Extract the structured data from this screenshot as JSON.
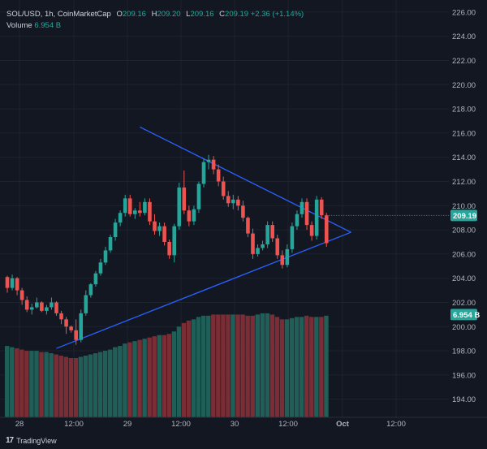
{
  "legend": {
    "symbol": "SOL/USD, 1h, CoinMarketCap",
    "o_label": "O",
    "o_value": "209.16",
    "h_label": "H",
    "h_value": "209.20",
    "l_label": "L",
    "l_value": "209.16",
    "c_label": "C",
    "c_value": "209.19",
    "change": "+2.36 (+1.14%)",
    "volume_label": "Volume",
    "volume_value": "6.954 B"
  },
  "branding": {
    "text": "TradingView",
    "mark": "17"
  },
  "colors": {
    "up": "#26a69a",
    "down": "#ef5350",
    "volume_up": "#1f5f58",
    "volume_down": "#7a2d35",
    "trendline": "#2962ff",
    "background": "#131722"
  },
  "chart_data": {
    "type": "candlestick",
    "y_ticks": [
      "194.00",
      "196.00",
      "198.00",
      "200.00",
      "202.00",
      "204.00",
      "206.00",
      "208.00",
      "210.00",
      "212.00",
      "214.00",
      "216.00",
      "218.00",
      "220.00",
      "222.00",
      "224.00",
      "226.00"
    ],
    "ylim": [
      192.5,
      227
    ],
    "x_ticks": [
      "28",
      "12:00",
      "29",
      "12:00",
      "30",
      "12:00",
      "Oct",
      "12:00"
    ],
    "price_label": "209.19",
    "volume_label": "6.954 B",
    "candles": [
      [
        204.1,
        204.2,
        202.8,
        203.2
      ],
      [
        203.2,
        204.3,
        203.0,
        204.0
      ],
      [
        204.0,
        204.1,
        202.6,
        203.0
      ],
      [
        203.0,
        203.2,
        201.8,
        202.2
      ],
      [
        202.2,
        202.5,
        201.2,
        201.4
      ],
      [
        201.4,
        201.9,
        201.0,
        201.6
      ],
      [
        201.6,
        202.4,
        201.5,
        202.0
      ],
      [
        202.0,
        202.1,
        201.2,
        201.3
      ],
      [
        201.3,
        201.8,
        201.0,
        201.6
      ],
      [
        201.6,
        202.4,
        201.4,
        202.0
      ],
      [
        202.0,
        202.1,
        200.9,
        201.1
      ],
      [
        201.1,
        201.3,
        200.2,
        200.6
      ],
      [
        200.6,
        200.8,
        199.4,
        200.0
      ],
      [
        200.0,
        200.1,
        199.5,
        199.7
      ],
      [
        199.7,
        200.6,
        198.5,
        198.9
      ],
      [
        198.9,
        201.4,
        198.7,
        201.1
      ],
      [
        201.1,
        203.0,
        200.9,
        202.6
      ],
      [
        202.6,
        203.6,
        202.4,
        203.5
      ],
      [
        203.5,
        204.6,
        203.3,
        204.4
      ],
      [
        204.4,
        205.6,
        204.2,
        205.3
      ],
      [
        205.3,
        206.6,
        205.1,
        206.3
      ],
      [
        206.3,
        207.6,
        206.1,
        207.4
      ],
      [
        207.4,
        208.9,
        207.1,
        208.6
      ],
      [
        208.6,
        209.6,
        208.3,
        209.4
      ],
      [
        209.4,
        210.9,
        209.1,
        210.6
      ],
      [
        210.6,
        210.9,
        209.1,
        209.3
      ],
      [
        209.3,
        209.8,
        208.9,
        209.6
      ],
      [
        209.6,
        210.3,
        209.1,
        209.4
      ],
      [
        209.4,
        210.6,
        209.2,
        210.3
      ],
      [
        210.3,
        210.6,
        208.4,
        208.7
      ],
      [
        208.7,
        209.3,
        207.6,
        207.9
      ],
      [
        207.9,
        208.6,
        207.5,
        208.3
      ],
      [
        208.3,
        208.6,
        206.7,
        207.0
      ],
      [
        207.0,
        207.2,
        205.6,
        205.9
      ],
      [
        205.9,
        208.5,
        205.3,
        208.3
      ],
      [
        208.3,
        211.9,
        208.0,
        211.5
      ],
      [
        211.5,
        212.9,
        209.3,
        209.6
      ],
      [
        209.6,
        210.0,
        208.3,
        208.7
      ],
      [
        208.7,
        210.0,
        208.4,
        209.7
      ],
      [
        209.7,
        212.0,
        209.4,
        211.8
      ],
      [
        211.8,
        213.9,
        211.5,
        213.6
      ],
      [
        213.6,
        214.2,
        213.0,
        213.8
      ],
      [
        213.8,
        214.1,
        212.6,
        213.0
      ],
      [
        213.0,
        213.4,
        211.6,
        212.0
      ],
      [
        212.0,
        212.4,
        210.5,
        210.8
      ],
      [
        210.8,
        211.2,
        209.9,
        210.2
      ],
      [
        210.2,
        210.9,
        209.7,
        210.5
      ],
      [
        210.5,
        210.8,
        209.6,
        210.0
      ],
      [
        210.0,
        210.4,
        208.7,
        209.0
      ],
      [
        209.0,
        209.1,
        207.4,
        207.7
      ],
      [
        207.7,
        208.1,
        205.6,
        206.0
      ],
      [
        206.0,
        206.8,
        205.8,
        206.5
      ],
      [
        206.5,
        207.1,
        206.3,
        206.8
      ],
      [
        206.8,
        208.7,
        206.5,
        208.4
      ],
      [
        208.4,
        208.7,
        207.0,
        207.3
      ],
      [
        207.3,
        207.6,
        205.6,
        205.9
      ],
      [
        205.9,
        206.3,
        204.8,
        205.1
      ],
      [
        205.1,
        206.8,
        204.9,
        206.4
      ],
      [
        206.4,
        208.6,
        206.1,
        208.3
      ],
      [
        208.3,
        209.6,
        208.0,
        209.3
      ],
      [
        209.3,
        210.6,
        209.0,
        210.3
      ],
      [
        210.3,
        210.6,
        208.0,
        208.4
      ],
      [
        208.4,
        208.7,
        207.1,
        207.5
      ],
      [
        207.5,
        210.8,
        207.2,
        210.5
      ],
      [
        210.5,
        210.7,
        208.9,
        209.2
      ],
      [
        209.2,
        209.4,
        206.6,
        206.9
      ]
    ],
    "volume": [
      [
        198.4,
        "up"
      ],
      [
        198.3,
        "up"
      ],
      [
        198.2,
        "down"
      ],
      [
        198.1,
        "down"
      ],
      [
        198.0,
        "down"
      ],
      [
        198.0,
        "up"
      ],
      [
        198.0,
        "up"
      ],
      [
        197.9,
        "down"
      ],
      [
        197.9,
        "up"
      ],
      [
        197.8,
        "up"
      ],
      [
        197.7,
        "down"
      ],
      [
        197.6,
        "down"
      ],
      [
        197.5,
        "down"
      ],
      [
        197.4,
        "down"
      ],
      [
        197.4,
        "down"
      ],
      [
        197.5,
        "up"
      ],
      [
        197.6,
        "up"
      ],
      [
        197.7,
        "up"
      ],
      [
        197.8,
        "up"
      ],
      [
        197.9,
        "up"
      ],
      [
        198.0,
        "up"
      ],
      [
        198.1,
        "up"
      ],
      [
        198.3,
        "up"
      ],
      [
        198.4,
        "up"
      ],
      [
        198.6,
        "up"
      ],
      [
        198.7,
        "down"
      ],
      [
        198.8,
        "up"
      ],
      [
        198.9,
        "down"
      ],
      [
        199.0,
        "up"
      ],
      [
        199.1,
        "down"
      ],
      [
        199.2,
        "down"
      ],
      [
        199.3,
        "up"
      ],
      [
        199.3,
        "down"
      ],
      [
        199.4,
        "down"
      ],
      [
        199.6,
        "up"
      ],
      [
        200.0,
        "up"
      ],
      [
        200.3,
        "down"
      ],
      [
        200.5,
        "down"
      ],
      [
        200.6,
        "up"
      ],
      [
        200.8,
        "up"
      ],
      [
        200.9,
        "up"
      ],
      [
        200.9,
        "up"
      ],
      [
        201.0,
        "down"
      ],
      [
        201.0,
        "down"
      ],
      [
        201.0,
        "down"
      ],
      [
        201.0,
        "down"
      ],
      [
        201.0,
        "up"
      ],
      [
        201.0,
        "down"
      ],
      [
        201.0,
        "down"
      ],
      [
        200.9,
        "down"
      ],
      [
        200.9,
        "down"
      ],
      [
        201.0,
        "up"
      ],
      [
        201.1,
        "up"
      ],
      [
        201.1,
        "up"
      ],
      [
        201.0,
        "down"
      ],
      [
        200.8,
        "down"
      ],
      [
        200.6,
        "down"
      ],
      [
        200.6,
        "up"
      ],
      [
        200.7,
        "up"
      ],
      [
        200.8,
        "up"
      ],
      [
        200.8,
        "up"
      ],
      [
        200.9,
        "down"
      ],
      [
        200.8,
        "down"
      ],
      [
        200.8,
        "up"
      ],
      [
        200.8,
        "down"
      ],
      [
        200.9,
        "up"
      ]
    ],
    "trendlines": [
      {
        "from": [
          27,
          216.5
        ],
        "to": [
          70,
          207.8
        ]
      },
      {
        "from": [
          10,
          198.2
        ],
        "to": [
          70,
          207.8
        ]
      }
    ]
  }
}
